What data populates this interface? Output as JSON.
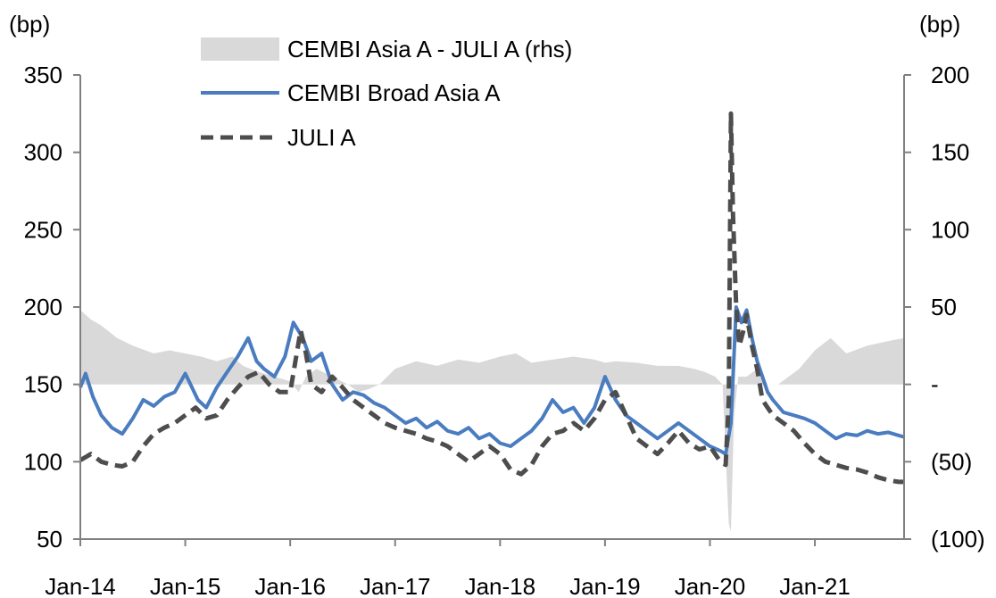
{
  "chart_data": {
    "type": "line",
    "title": "",
    "left_axis": {
      "unit_label": "(bp)",
      "ylim": [
        50,
        350
      ],
      "ticks": [
        50,
        100,
        150,
        200,
        250,
        300,
        350
      ],
      "tick_labels": [
        "50",
        "100",
        "150",
        "200",
        "250",
        "300",
        "350"
      ]
    },
    "right_axis": {
      "unit_label": "(bp)",
      "ylim": [
        -100,
        200
      ],
      "ticks": [
        -100,
        -50,
        0,
        50,
        100,
        150,
        200
      ],
      "tick_labels": [
        "(100)",
        "(50)",
        "-",
        "50",
        "100",
        "150",
        "200"
      ]
    },
    "x_axis": {
      "xlim": [
        2014.0,
        2021.85
      ],
      "ticks": [
        2014,
        2015,
        2016,
        2017,
        2018,
        2019,
        2020,
        2021
      ],
      "tick_labels": [
        "Jan-14",
        "Jan-15",
        "Jan-16",
        "Jan-17",
        "Jan-18",
        "Jan-19",
        "Jan-20",
        "Jan-21"
      ]
    },
    "legend_placement": "top-center",
    "series": [
      {
        "name": "CEMBI Asia A - JULI A (rhs)",
        "type": "area",
        "axis": "right",
        "color": "#d9d9d9",
        "x": [
          2014.0,
          2014.1,
          2014.2,
          2014.35,
          2014.5,
          2014.7,
          2014.85,
          2015.0,
          2015.15,
          2015.3,
          2015.45,
          2015.55,
          2015.7,
          2015.85,
          2016.0,
          2016.08,
          2016.15,
          2016.25,
          2016.4,
          2016.55,
          2016.65,
          2016.75,
          2016.85,
          2017.0,
          2017.2,
          2017.4,
          2017.6,
          2017.8,
          2018.0,
          2018.15,
          2018.3,
          2018.5,
          2018.7,
          2018.9,
          2019.0,
          2019.1,
          2019.3,
          2019.5,
          2019.7,
          2019.85,
          2019.95,
          2020.05,
          2020.12,
          2020.18,
          2020.2,
          2020.23,
          2020.27,
          2020.35,
          2020.45,
          2020.55,
          2020.65,
          2020.75,
          2020.85,
          2021.0,
          2021.15,
          2021.3,
          2021.5,
          2021.7,
          2021.85
        ],
        "values": [
          48,
          42,
          38,
          30,
          25,
          20,
          22,
          20,
          18,
          15,
          18,
          12,
          8,
          5,
          2,
          -5,
          5,
          10,
          5,
          0,
          -5,
          -3,
          0,
          10,
          15,
          12,
          16,
          14,
          18,
          20,
          14,
          16,
          18,
          16,
          14,
          15,
          14,
          12,
          12,
          10,
          8,
          5,
          0,
          -90,
          -95,
          -20,
          5,
          5,
          10,
          0,
          0,
          5,
          10,
          22,
          30,
          20,
          25,
          28,
          30
        ]
      },
      {
        "name": "CEMBI Broad Asia A",
        "type": "line",
        "axis": "left",
        "color": "#4a7cc0",
        "x": [
          2014.0,
          2014.05,
          2014.12,
          2014.2,
          2014.3,
          2014.4,
          2014.5,
          2014.6,
          2014.7,
          2014.8,
          2014.9,
          2015.0,
          2015.05,
          2015.12,
          2015.2,
          2015.3,
          2015.4,
          2015.5,
          2015.6,
          2015.68,
          2015.75,
          2015.85,
          2015.95,
          2016.03,
          2016.12,
          2016.2,
          2016.3,
          2016.4,
          2016.5,
          2016.6,
          2016.7,
          2016.8,
          2016.9,
          2017.0,
          2017.1,
          2017.2,
          2017.3,
          2017.4,
          2017.5,
          2017.6,
          2017.7,
          2017.8,
          2017.9,
          2018.0,
          2018.1,
          2018.2,
          2018.3,
          2018.4,
          2018.5,
          2018.6,
          2018.7,
          2018.8,
          2018.9,
          2019.0,
          2019.1,
          2019.2,
          2019.3,
          2019.4,
          2019.5,
          2019.6,
          2019.7,
          2019.8,
          2019.9,
          2020.0,
          2020.1,
          2020.15,
          2020.2,
          2020.25,
          2020.3,
          2020.35,
          2020.4,
          2020.45,
          2020.5,
          2020.55,
          2020.6,
          2020.7,
          2020.8,
          2020.9,
          2021.0,
          2021.1,
          2021.2,
          2021.3,
          2021.4,
          2021.5,
          2021.6,
          2021.7,
          2021.8,
          2021.85
        ],
        "values": [
          148,
          157,
          142,
          130,
          122,
          118,
          128,
          140,
          136,
          142,
          145,
          157,
          150,
          140,
          135,
          148,
          158,
          168,
          180,
          165,
          160,
          155,
          168,
          190,
          180,
          165,
          170,
          150,
          140,
          145,
          143,
          138,
          135,
          130,
          125,
          128,
          122,
          126,
          120,
          118,
          122,
          115,
          118,
          112,
          110,
          115,
          120,
          128,
          140,
          132,
          135,
          125,
          135,
          155,
          140,
          130,
          125,
          120,
          115,
          120,
          125,
          120,
          115,
          110,
          107,
          105,
          125,
          200,
          190,
          198,
          180,
          165,
          155,
          145,
          140,
          132,
          130,
          128,
          125,
          120,
          115,
          118,
          117,
          120,
          118,
          119,
          117,
          116
        ]
      },
      {
        "name": "JULI A",
        "type": "line",
        "axis": "left",
        "color": "#4d4d4d",
        "dashed": true,
        "x": [
          2014.0,
          2014.1,
          2014.2,
          2014.3,
          2014.4,
          2014.5,
          2014.6,
          2014.7,
          2014.8,
          2014.9,
          2015.0,
          2015.1,
          2015.2,
          2015.3,
          2015.4,
          2015.5,
          2015.6,
          2015.7,
          2015.8,
          2015.9,
          2016.0,
          2016.05,
          2016.1,
          2016.15,
          2016.2,
          2016.3,
          2016.4,
          2016.5,
          2016.6,
          2016.7,
          2016.8,
          2016.9,
          2017.0,
          2017.1,
          2017.2,
          2017.3,
          2017.4,
          2017.5,
          2017.6,
          2017.7,
          2017.8,
          2017.9,
          2018.0,
          2018.05,
          2018.1,
          2018.2,
          2018.3,
          2018.4,
          2018.5,
          2018.6,
          2018.7,
          2018.8,
          2018.9,
          2019.0,
          2019.1,
          2019.2,
          2019.3,
          2019.4,
          2019.5,
          2019.6,
          2019.7,
          2019.8,
          2019.9,
          2020.0,
          2020.1,
          2020.15,
          2020.18,
          2020.2,
          2020.22,
          2020.25,
          2020.28,
          2020.32,
          2020.35,
          2020.4,
          2020.45,
          2020.5,
          2020.55,
          2020.6,
          2020.7,
          2020.8,
          2020.9,
          2021.0,
          2021.1,
          2021.2,
          2021.3,
          2021.4,
          2021.5,
          2021.6,
          2021.7,
          2021.8,
          2021.85
        ],
        "values": [
          101,
          105,
          100,
          98,
          97,
          100,
          110,
          118,
          122,
          125,
          130,
          135,
          128,
          130,
          140,
          148,
          155,
          158,
          150,
          145,
          145,
          165,
          185,
          170,
          150,
          145,
          155,
          148,
          140,
          135,
          130,
          125,
          122,
          120,
          118,
          115,
          113,
          110,
          105,
          100,
          105,
          110,
          105,
          100,
          95,
          92,
          98,
          110,
          118,
          120,
          125,
          120,
          128,
          140,
          145,
          130,
          115,
          110,
          105,
          112,
          120,
          112,
          108,
          110,
          100,
          98,
          140,
          325,
          260,
          200,
          175,
          185,
          195,
          175,
          160,
          140,
          135,
          130,
          125,
          120,
          112,
          105,
          100,
          98,
          96,
          95,
          93,
          90,
          88,
          87,
          87
        ]
      }
    ]
  }
}
